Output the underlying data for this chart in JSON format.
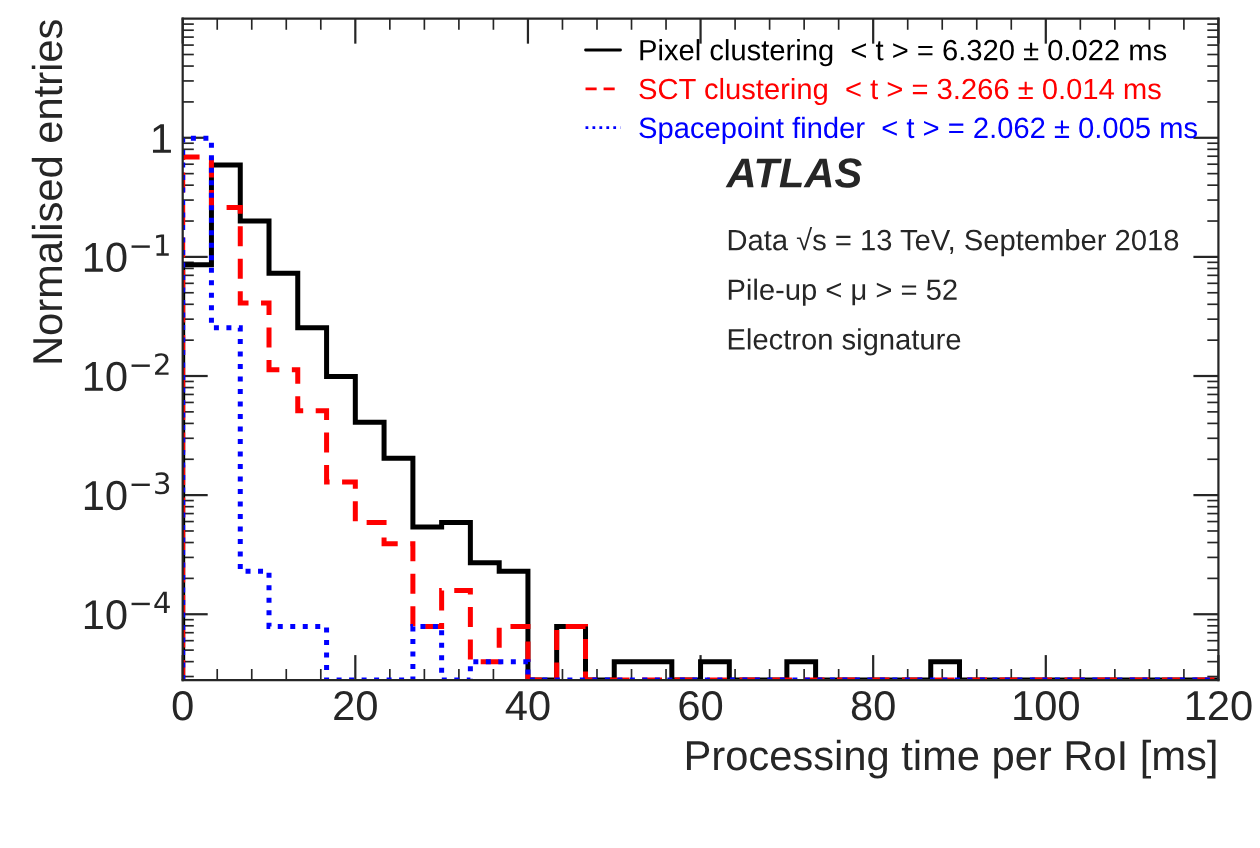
{
  "chart_data": {
    "type": "histogram",
    "xlabel": "Processing time per RoI [ms]",
    "ylabel": "Normalised entries",
    "bins": [
      0,
      3.33,
      6.67,
      10,
      13.33,
      16.67,
      20,
      23.33,
      26.67,
      30,
      33.33,
      36.67,
      40,
      43.33,
      46.67,
      50,
      53.33,
      56.67,
      60,
      63.33,
      66.67,
      70,
      73.33,
      76.67,
      80,
      83.33,
      86.67,
      90,
      93.33,
      96.67,
      100,
      103.33,
      106.67,
      110,
      113.33,
      116.67,
      120
    ],
    "series": [
      {
        "name": "Pixel clustering  < t > = 6.320 ± 0.022 ms",
        "color": "#000000",
        "line_style": "solid",
        "values": [
          0.086,
          0.59,
          0.2,
          0.073,
          0.0254,
          0.0099,
          0.0041,
          0.00204,
          0.00054,
          0.00059,
          0.00027,
          0.00023,
          null,
          7.9e-05,
          null,
          4e-05,
          4e-05,
          null,
          4e-05,
          null,
          null,
          4e-05,
          null,
          null,
          null,
          null,
          4e-05,
          null,
          null,
          null,
          null,
          null,
          null,
          null,
          null,
          null
        ]
      },
      {
        "name": "SCT clustering  < t > = 3.266 ± 0.014 ms",
        "color": "#ff0000",
        "line_style": "dashed",
        "values": [
          0.69,
          0.26,
          0.041,
          0.0113,
          0.0051,
          0.00129,
          0.00059,
          0.00039,
          7.9e-05,
          0.000158,
          4e-05,
          7.9e-05,
          null,
          7.9e-05,
          null,
          null,
          null,
          null,
          null,
          null,
          null,
          null,
          null,
          null,
          null,
          null,
          null,
          null,
          null,
          null,
          null,
          null,
          null,
          null,
          null,
          null
        ]
      },
      {
        "name": "Spacepoint finder  < t > = 2.062 ± 0.005 ms",
        "color": "#0000ff",
        "line_style": "dotted",
        "values": [
          0.99,
          0.0254,
          0.00023,
          7.9e-05,
          7.9e-05,
          null,
          null,
          null,
          7.9e-05,
          null,
          4e-05,
          4e-05,
          null,
          null,
          null,
          null,
          null,
          null,
          null,
          null,
          null,
          null,
          null,
          null,
          null,
          null,
          null,
          null,
          null,
          null,
          null,
          null,
          null,
          null,
          null,
          null
        ]
      }
    ],
    "log": "y",
    "xlim": [
      0,
      120
    ],
    "xticks": [
      0,
      20,
      40,
      60,
      80,
      100,
      120
    ],
    "ylim": [
      2.8e-05,
      10
    ],
    "yticks": [
      {
        "value": 0.0001,
        "label": "10$^{−4}$"
      },
      {
        "value": 0.001,
        "label": "10$^{−3}$"
      },
      {
        "value": 0.01,
        "label": "10$^{−2}$"
      },
      {
        "value": 0.1,
        "label": "10$^{−1}$"
      },
      {
        "value": 1,
        "label": "1"
      }
    ],
    "legend": "top right",
    "grid": false,
    "annotations": [
      "ATLAS",
      "Data √s = 13 TeV, September 2018",
      "Pile-up < μ > = 52",
      "Electron signature"
    ]
  }
}
